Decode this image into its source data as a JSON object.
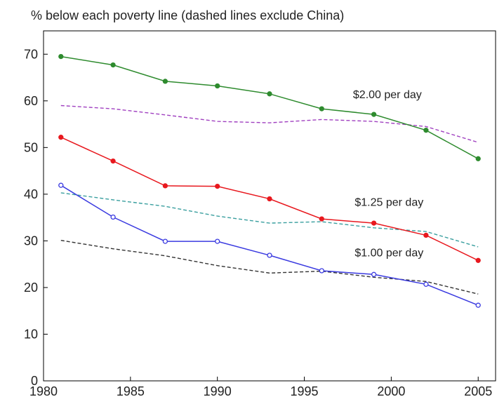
{
  "chart_data": {
    "type": "line",
    "title": "% below each poverty line (dashed lines exclude China)",
    "xlabel": "",
    "ylabel": "",
    "xlim": [
      1980,
      2006
    ],
    "ylim": [
      0,
      75
    ],
    "x_ticks": [
      1980,
      1985,
      1990,
      1995,
      2000,
      2005
    ],
    "y_ticks": [
      0,
      10,
      20,
      30,
      40,
      50,
      60,
      70
    ],
    "grid": false,
    "x": [
      1981,
      1984,
      1987,
      1990,
      1993,
      1996,
      1999,
      2002,
      2005
    ],
    "series": [
      {
        "id": "s200",
        "line": "solid",
        "color": "#2e8b2e",
        "marker": "filled-circle",
        "values": [
          69.5,
          67.7,
          64.2,
          63.2,
          61.5,
          58.3,
          57.1,
          53.7,
          47.6
        ]
      },
      {
        "id": "s125",
        "line": "solid",
        "color": "#e8181e",
        "marker": "filled-circle",
        "values": [
          52.2,
          47.1,
          41.8,
          41.7,
          39.0,
          34.7,
          33.8,
          31.2,
          25.8
        ]
      },
      {
        "id": "s100",
        "line": "solid",
        "color": "#3a3ae0",
        "marker": "open-circle",
        "values": [
          41.9,
          35.1,
          29.9,
          29.9,
          26.9,
          23.6,
          22.8,
          20.7,
          16.2
        ]
      },
      {
        "id": "s200_excl",
        "line": "dashed",
        "color": "#a040c0",
        "values": [
          59.0,
          58.3,
          57.0,
          55.6,
          55.3,
          56.0,
          55.6,
          54.5,
          51.1
        ]
      },
      {
        "id": "s125_excl",
        "line": "dashed",
        "color": "#3a9f9f",
        "values": [
          40.3,
          38.8,
          37.4,
          35.3,
          33.8,
          34.1,
          32.8,
          32.0,
          28.7
        ]
      },
      {
        "id": "s100_excl",
        "line": "dashed",
        "color": "#333333",
        "values": [
          30.1,
          28.3,
          26.8,
          24.7,
          23.1,
          23.5,
          22.2,
          21.3,
          18.6
        ]
      }
    ],
    "annotations": [
      {
        "text": "$2.00 per day",
        "x": 1997.8,
        "y": 60.6
      },
      {
        "text": "$1.25 per day",
        "x": 1997.9,
        "y": 37.5
      },
      {
        "text": "$1.00 per day",
        "x": 1997.9,
        "y": 26.7
      }
    ]
  }
}
